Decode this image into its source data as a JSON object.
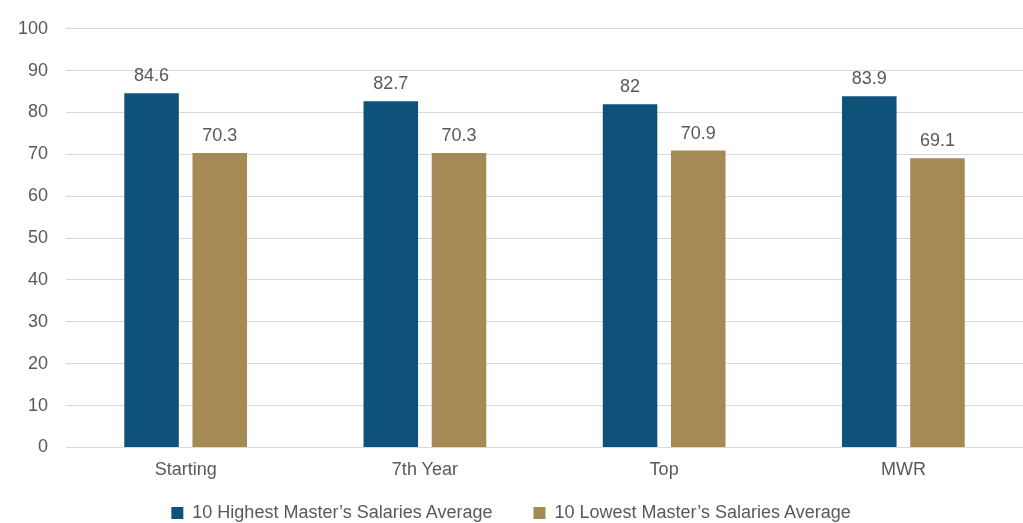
{
  "chart_data": {
    "type": "bar",
    "categories": [
      "Starting",
      "7th Year",
      "Top",
      "MWR"
    ],
    "series": [
      {
        "name": "10 Highest Master’s Salaries Average",
        "color": "#0f5279",
        "values": [
          84.6,
          82.7,
          82,
          83.9
        ]
      },
      {
        "name": "10 Lowest Master’s Salaries Average",
        "color": "#a68a55",
        "values": [
          70.3,
          70.3,
          70.9,
          69.1
        ]
      }
    ],
    "ylim": [
      0,
      100
    ],
    "yticks": [
      0,
      10,
      20,
      30,
      40,
      50,
      60,
      70,
      80,
      90,
      100
    ],
    "grid": "y",
    "legend": "bottom",
    "data_labels": true
  }
}
